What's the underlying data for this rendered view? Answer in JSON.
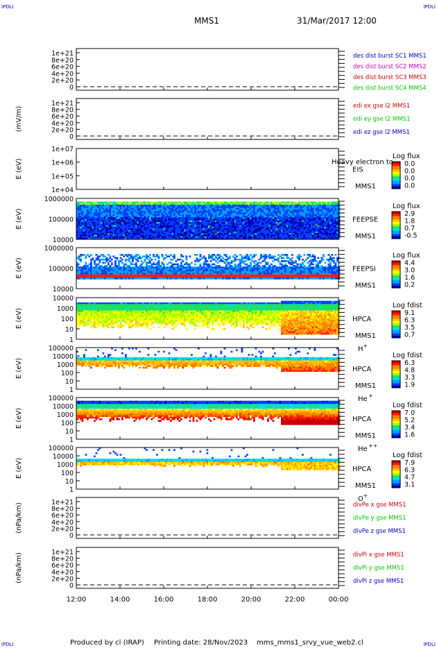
{
  "corners": {
    "tl": "IPDLI",
    "tr": "IPDLI",
    "bl": "IPDLI",
    "br": "IPDLI"
  },
  "header": {
    "mission": "MMS1",
    "date": "31/Mar/2017 12:00"
  },
  "footer": {
    "produced": "Produced by cl (IRAP)",
    "printing": "Printing date: 28/Nov/2023",
    "file": "mms_mms1_srvy_vue_web2.cl"
  },
  "colors": {
    "blue": "#0000c8",
    "magenta": "#c800c8",
    "red": "#c80000",
    "green": "#00c800"
  },
  "chart_data": {
    "type": "heatmap",
    "xticks": [
      "12:00",
      "14:00",
      "16:00",
      "18:00",
      "20:00",
      "22:00",
      "00:00"
    ],
    "panels": [
      {
        "kind": "line",
        "ylabel": "",
        "yticks": [
          "1e+21",
          "8e+20",
          "6e+20",
          "4e+20",
          "2e+20",
          "0"
        ],
        "legend": [
          {
            "text": "des dist burst SC1 MMS1",
            "color": "#0000c8"
          },
          {
            "text": "des dist burst SC2 MMS2",
            "color": "#c800c8"
          },
          {
            "text": "des dist burst SC3 MMS3",
            "color": "#c80000"
          },
          {
            "text": "des dist burst SC4 MMS4",
            "color": "#00c800"
          }
        ]
      },
      {
        "kind": "line",
        "ylabel": "(mV/m)",
        "yticks": [
          "1e+21",
          "8e+20",
          "6e+20",
          "4e+20",
          "2e+20",
          "0"
        ],
        "legend": [
          {
            "text": "edi ex gse l2 MMS1",
            "color": "#c80000"
          },
          {
            "text": "edi ey gse l2 MMS1",
            "color": "#00c800"
          },
          {
            "text": "edi ez gse l2 MMS1",
            "color": "#0000c8"
          }
        ]
      },
      {
        "kind": "spec",
        "style": "empty",
        "ylabel": "E (eV)",
        "yticks": [
          "1e+07",
          "1e+06",
          "1e+05",
          "1e+04"
        ],
        "instr": "EIS",
        "sc": "MMS1",
        "species": "",
        "extra": "Heavy electron to",
        "cbtitle": "Log flux",
        "cbvals": [
          "0.0",
          "0.0",
          "0.0",
          "0.0"
        ]
      },
      {
        "kind": "spec",
        "style": "feepse",
        "ylabel": "E (eV)",
        "yticks": [
          "1000000",
          "100000",
          "10000"
        ],
        "instr": "FEEPSE",
        "sc": "MMS1",
        "species": "",
        "cbtitle": "Log flux",
        "cbvals": [
          "2.9",
          "1.8",
          "0.7",
          "-0.5"
        ]
      },
      {
        "kind": "spec",
        "style": "feepsi",
        "ylabel": "E (eV)",
        "yticks": [
          "1000000",
          "100000",
          "10000"
        ],
        "instr": "FEEPSI",
        "sc": "MMS1",
        "species": "",
        "cbtitle": "Log flux",
        "cbvals": [
          "4.4",
          "3.0",
          "1.6",
          "0.2"
        ]
      },
      {
        "kind": "spec",
        "style": "hpca_h",
        "ylabel": "E (eV)",
        "yticks": [
          "10000",
          "1000",
          "100",
          "10",
          "1"
        ],
        "instr": "HPCA",
        "sc": "MMS1",
        "species": "H+",
        "cbtitle": "Log fdist",
        "cbvals": [
          "9.1",
          "6.3",
          "3.5",
          "0.7"
        ]
      },
      {
        "kind": "spec",
        "style": "hpca_he",
        "ylabel": "E (eV)",
        "yticks": [
          "100000",
          "10000",
          "1000",
          "100",
          "10",
          "1"
        ],
        "instr": "HPCA",
        "sc": "MMS1",
        "species": "He+",
        "cbtitle": "Log fdist",
        "cbvals": [
          "6.3",
          "4.8",
          "3.3",
          "1.9"
        ]
      },
      {
        "kind": "spec",
        "style": "hpca_hepp",
        "ylabel": "E (eV)",
        "yticks": [
          "100000",
          "10000",
          "1000",
          "100",
          "10",
          "1"
        ],
        "instr": "HPCA",
        "sc": "MMS1",
        "species": "He++",
        "cbtitle": "Log fdist",
        "cbvals": [
          "7.0",
          "5.2",
          "3.4",
          "1.6"
        ]
      },
      {
        "kind": "spec",
        "style": "hpca_o",
        "ylabel": "E (eV)",
        "yticks": [
          "100000",
          "10000",
          "1000",
          "100",
          "10",
          "1"
        ],
        "instr": "HPCA",
        "sc": "MMS1",
        "species": "O+",
        "cbtitle": "Log fdist",
        "cbvals": [
          "7.9",
          "6.3",
          "4.7",
          "3.1"
        ]
      },
      {
        "kind": "line",
        "ylabel": "(nPa/km)",
        "yticks": [
          "1e+21",
          "8e+20",
          "6e+20",
          "4e+20",
          "2e+20",
          "0"
        ],
        "legend": [
          {
            "text": "divPe x gse MMS1",
            "color": "#c80000"
          },
          {
            "text": "divPe y gse MMS1",
            "color": "#00c800"
          },
          {
            "text": "divPe z gse MMS1",
            "color": "#0000c8"
          }
        ]
      },
      {
        "kind": "line",
        "ylabel": "(nPa/km)",
        "yticks": [
          "1e+21",
          "8e+20",
          "6e+20",
          "4e+20",
          "2e+20",
          "0"
        ],
        "legend": [
          {
            "text": "divPi x gse MMS1",
            "color": "#c80000"
          },
          {
            "text": "divPi y gse MMS1",
            "color": "#00c800"
          },
          {
            "text": "divPi z gse MMS1",
            "color": "#0000c8"
          }
        ]
      }
    ]
  }
}
